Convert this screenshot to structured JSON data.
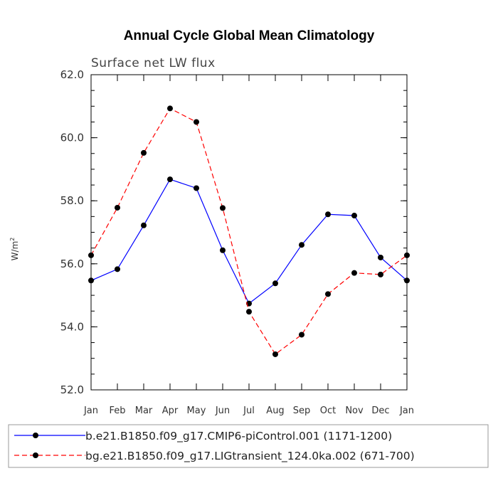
{
  "chart_data": {
    "type": "line",
    "title": "Annual Cycle Global Mean Climatology",
    "subtitle": "Surface net LW flux",
    "ylabel": "W/m",
    "ylabel_superscript": "2",
    "xlabel": "",
    "categories": [
      "Jan",
      "Feb",
      "Mar",
      "Apr",
      "May",
      "Jun",
      "Jul",
      "Aug",
      "Sep",
      "Oct",
      "Nov",
      "Dec",
      "Jan"
    ],
    "ylim": [
      52.0,
      62.0
    ],
    "yticks": [
      52.0,
      54.0,
      56.0,
      58.0,
      60.0,
      62.0
    ],
    "ytick_labels": [
      "52.0",
      "54.0",
      "56.0",
      "58.0",
      "60.0",
      "62.0"
    ],
    "grid": false,
    "legend_position": "bottom",
    "series": [
      {
        "name": "b.e21.B1850.f09_g17.CMIP6-piControl.001 (1171-1200)",
        "color": "#0000ff",
        "dash": "solid",
        "values": [
          55.47,
          55.83,
          57.22,
          58.68,
          58.4,
          56.43,
          54.74,
          55.38,
          56.6,
          57.57,
          57.53,
          56.2,
          55.47
        ]
      },
      {
        "name": "bg.e21.B1850.f09_g17.LIGtransient_124.0ka.002 (671-700)",
        "color": "#ff0000",
        "dash": "dashed",
        "values": [
          56.27,
          57.78,
          59.52,
          60.93,
          60.5,
          57.77,
          54.48,
          53.13,
          53.75,
          55.04,
          55.71,
          55.66,
          56.27
        ]
      }
    ]
  }
}
